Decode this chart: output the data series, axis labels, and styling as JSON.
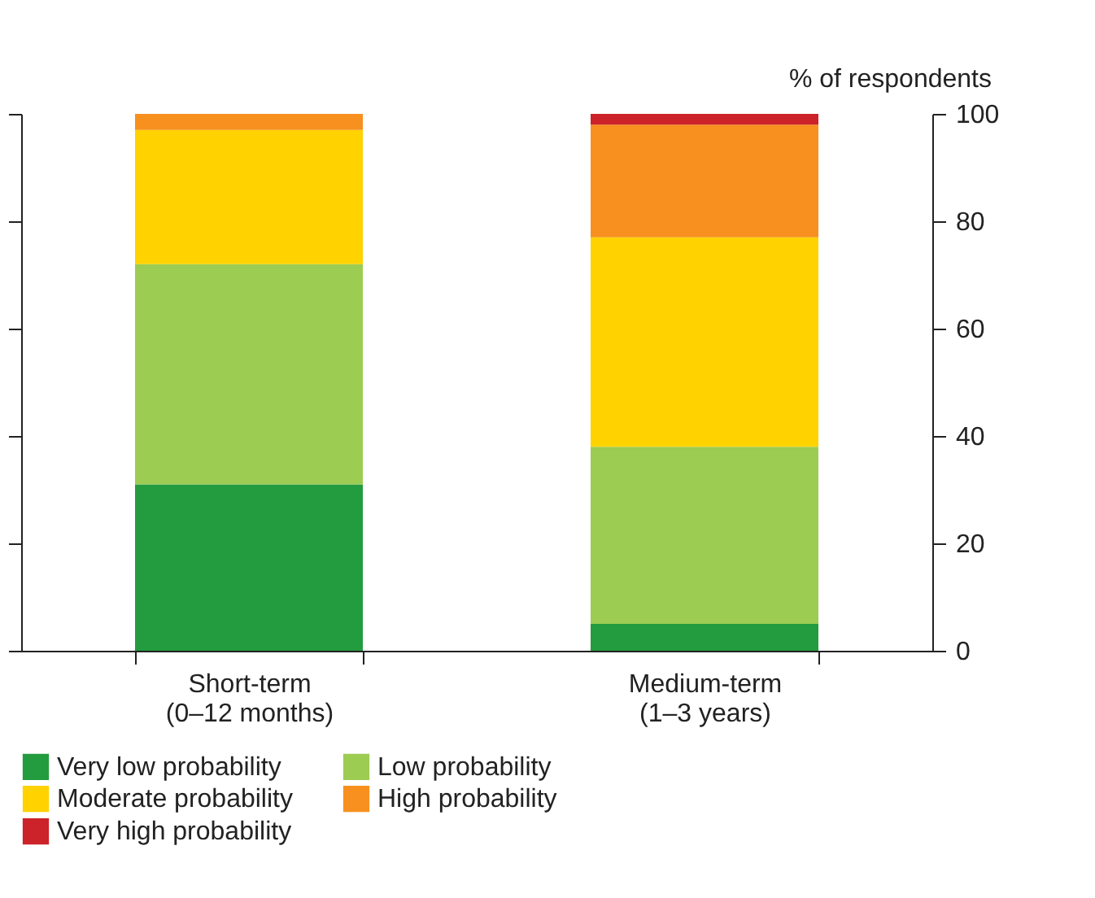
{
  "chart_data": {
    "type": "bar",
    "stacked": true,
    "ylabel": "% of respondents",
    "categories": [
      "Short-term\n(0–12 months)",
      "Medium-term\n(1–3 years)"
    ],
    "ylim": [
      0,
      100
    ],
    "yticks": [
      0,
      20,
      40,
      60,
      80,
      100
    ],
    "grid": false,
    "legend": "bottom",
    "series": [
      {
        "name": "Very low probability",
        "color": "#239b3f",
        "values": [
          31,
          5
        ]
      },
      {
        "name": "Low probability",
        "color": "#9ccc52",
        "values": [
          41,
          33
        ]
      },
      {
        "name": "Moderate probability",
        "color": "#ffd200",
        "values": [
          25,
          39
        ]
      },
      {
        "name": "High probability",
        "color": "#f7901e",
        "values": [
          3,
          21
        ]
      },
      {
        "name": "Very high probability",
        "color": "#cc2229",
        "values": [
          0,
          2
        ]
      }
    ]
  }
}
